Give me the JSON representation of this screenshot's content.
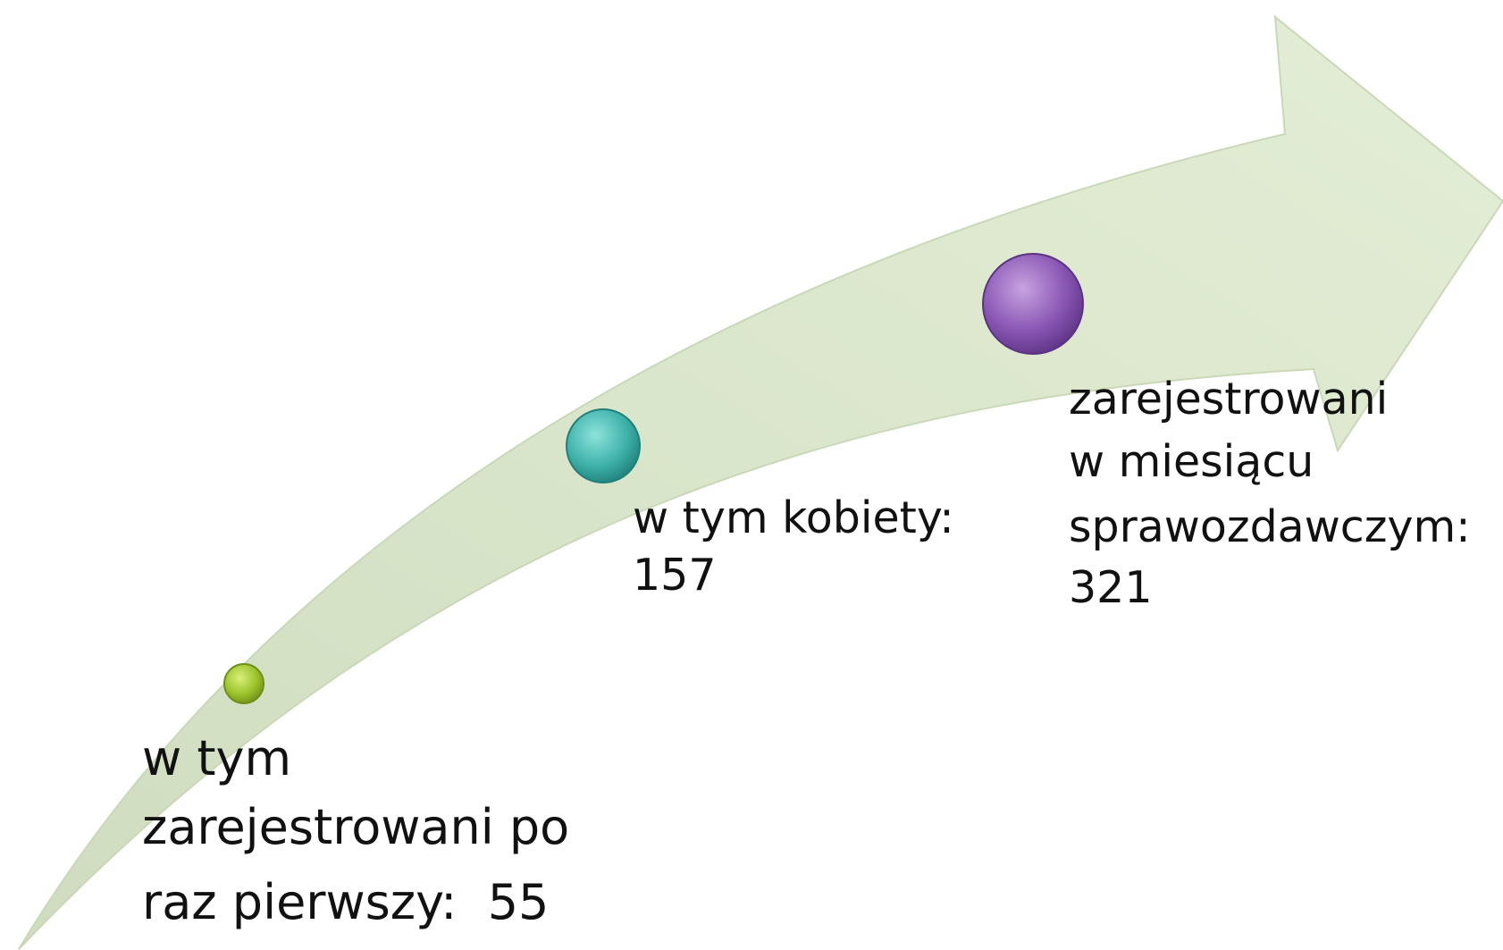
{
  "nodes": [
    {
      "label": [
        "w tym",
        "zarejestrowani po",
        "raz pierwszy:  55"
      ]
    },
    {
      "label": [
        "w tym kobiety:",
        "157"
      ]
    },
    {
      "label": [
        "zarejestrowani",
        "w miesiącu",
        "sprawozdawczym:",
        "321"
      ]
    }
  ]
}
